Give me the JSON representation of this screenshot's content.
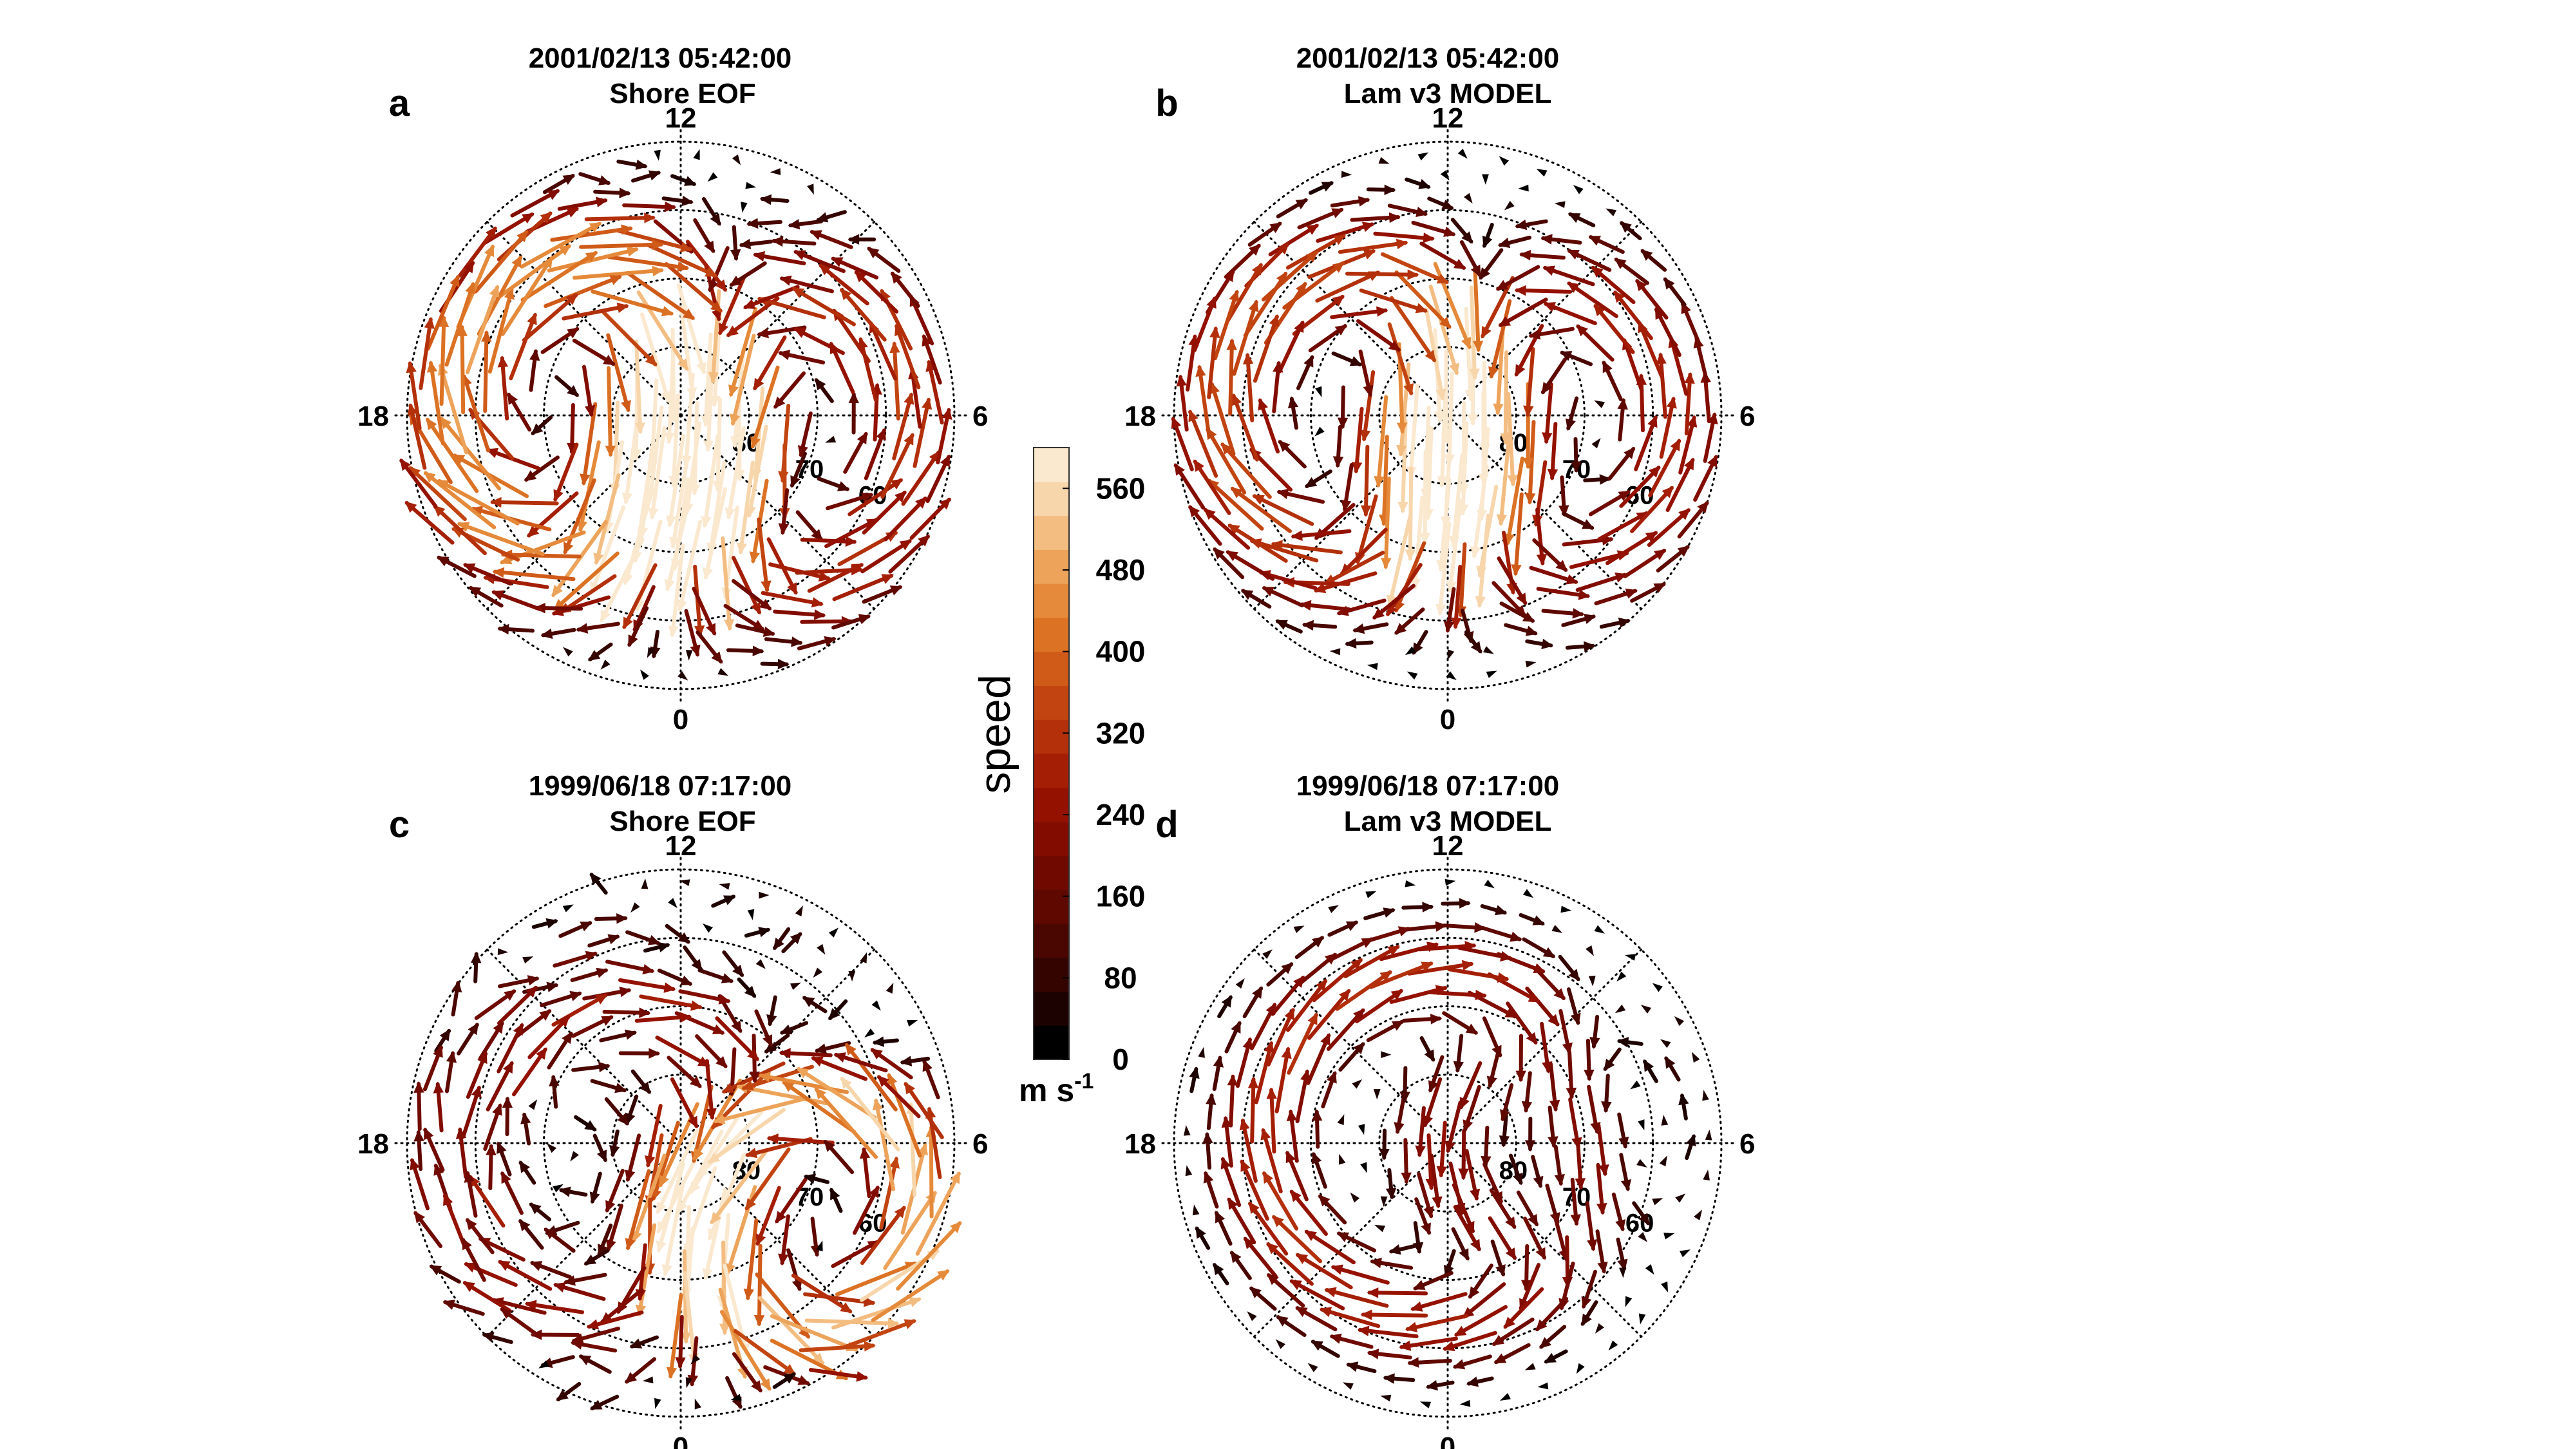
{
  "chart_data": [
    {
      "type": "vector-field",
      "panel": "a",
      "date": "2001/02/13",
      "time": "05:42:00",
      "title": "Shore EOF",
      "hour_labels": {
        "top": "12",
        "left": "18",
        "right": "6",
        "bottom": "0"
      },
      "lat_labels": [
        "80",
        "70",
        "60"
      ],
      "pattern": "two-cell convection, strong sunward flow on dusk side, antisunward flow over pole",
      "speed_range_ms": [
        0,
        520
      ]
    },
    {
      "type": "vector-field",
      "panel": "b",
      "date": "2001/02/13",
      "time": "05:42:00",
      "title": "Lam v3 MODEL",
      "hour_labels": {
        "top": "12",
        "left": "18",
        "right": "6",
        "bottom": "0"
      },
      "lat_labels": [
        "80",
        "70",
        "60"
      ],
      "pattern": "two-cell convection, strongest flow near dayside throat",
      "speed_range_ms": [
        0,
        460
      ]
    },
    {
      "type": "vector-field",
      "panel": "c",
      "date": "1999/06/18",
      "time": "07:17:00",
      "title": "Shore EOF",
      "hour_labels": {
        "top": "12",
        "left": "18",
        "right": "6",
        "bottom": "0"
      },
      "lat_labels": [
        "80",
        "70",
        "60"
      ],
      "pattern": "irregular flow, strongest sunward flow near 04-05 MLT around 65-70 deg",
      "speed_range_ms": [
        0,
        600
      ]
    },
    {
      "type": "vector-field",
      "panel": "d",
      "date": "1999/06/18",
      "time": "07:17:00",
      "title": "Lam v3 MODEL",
      "hour_labels": {
        "top": "12",
        "left": "18",
        "right": "6",
        "bottom": "0"
      },
      "lat_labels": [
        "80",
        "70",
        "60"
      ],
      "pattern": "large dusk-cell clockwise rotation dominating",
      "speed_range_ms": [
        0,
        340
      ]
    }
  ],
  "colorbar": {
    "label": "speed",
    "unit": "m s",
    "unit_superscript": "-1",
    "ticks": [
      "0",
      "80",
      "160",
      "240",
      "320",
      "400",
      "480",
      "560"
    ],
    "tick_values": [
      0,
      80,
      160,
      240,
      320,
      400,
      480,
      560
    ],
    "range": [
      0,
      600
    ],
    "colors": [
      "#000000",
      "#1c0200",
      "#330400",
      "#4a0600",
      "#5e0800",
      "#700a00",
      "#820c00",
      "#941100",
      "#a41e05",
      "#b3300a",
      "#c24410",
      "#d05a18",
      "#dc7224",
      "#e58a3a",
      "#eda35a",
      "#f3bd82",
      "#f7d6ac",
      "#fae8cf"
    ]
  }
}
